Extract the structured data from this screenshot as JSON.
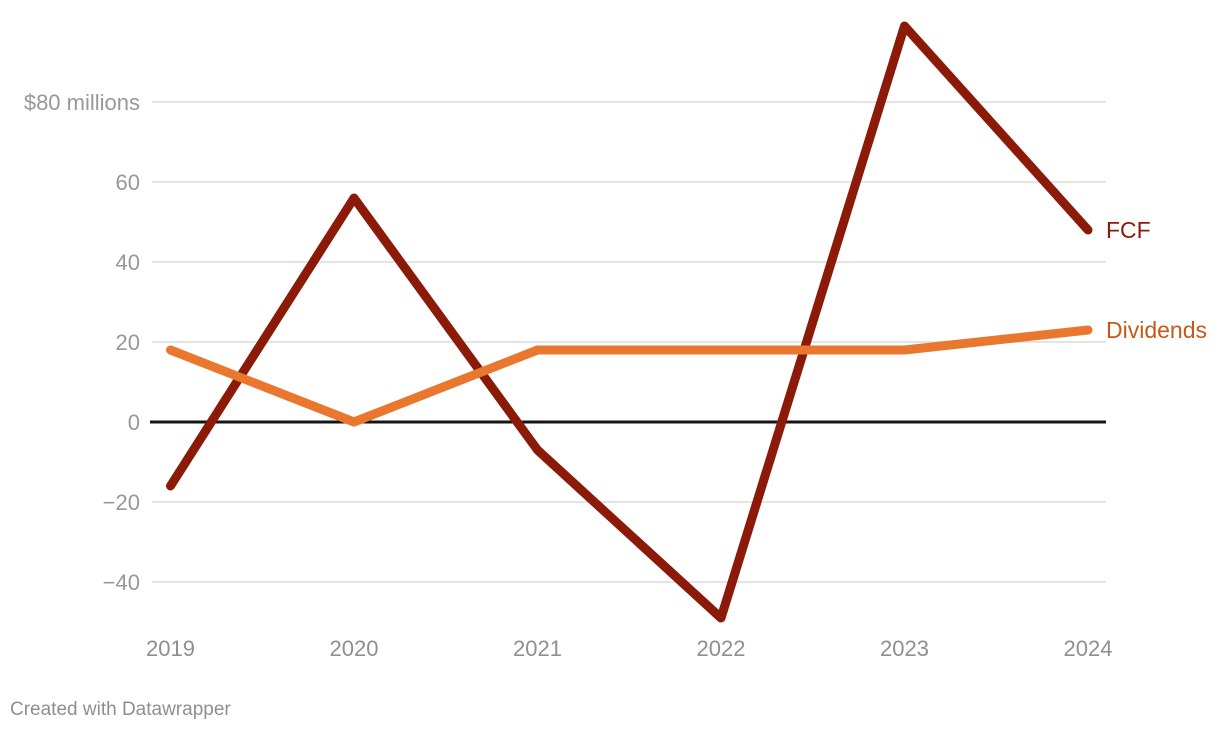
{
  "footer": {
    "attribution": "Created with Datawrapper"
  },
  "chart_data": {
    "type": "line",
    "title": "",
    "x": [
      2019,
      2020,
      2021,
      2022,
      2023,
      2024
    ],
    "x_tick_labels": [
      "2019",
      "2020",
      "2021",
      "2022",
      "2023",
      "2024"
    ],
    "series": [
      {
        "name": "FCF",
        "values": [
          -16,
          56,
          -7,
          -49,
          99,
          48
        ],
        "color": "#8c1a08",
        "label_color": "#8c1a08"
      },
      {
        "name": "Dividends",
        "values": [
          18,
          0,
          18,
          18,
          18,
          23
        ],
        "color": "#e9772e",
        "label_color": "#c45a17"
      }
    ],
    "y_ticks": [
      80,
      60,
      40,
      20,
      0,
      -20,
      -40
    ],
    "y_tick_labels": [
      "$80 millions",
      "60",
      "40",
      "20",
      "0",
      "−20",
      "−40"
    ],
    "unit_label": "$80 millions",
    "ylim": [
      -52,
      103
    ],
    "grid": "horizontal",
    "zero_line": true,
    "legend_position": "direct-label-right"
  },
  "colors": {
    "background": "#ffffff",
    "grid": "#e4e4e4",
    "zero_line": "#161616",
    "axis_text": "#989898",
    "x_axis_text": "#8f8f8f",
    "footer_text": "#8f8f8f"
  }
}
